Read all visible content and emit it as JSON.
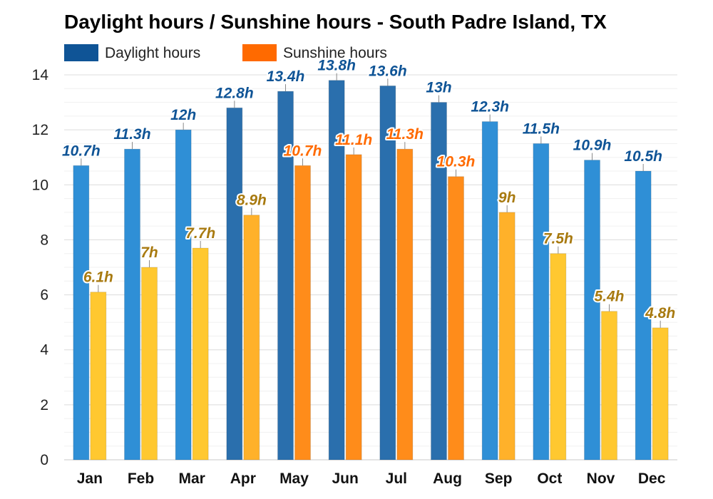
{
  "chart_data": {
    "type": "bar",
    "title": "Daylight hours / Sunshine hours - South Padre Island, TX",
    "categories": [
      "Jan",
      "Feb",
      "Mar",
      "Apr",
      "May",
      "Jun",
      "Jul",
      "Aug",
      "Sep",
      "Oct",
      "Nov",
      "Dec"
    ],
    "series": [
      {
        "name": "Daylight hours",
        "values": [
          10.7,
          11.3,
          12,
          12.8,
          13.4,
          13.8,
          13.6,
          13,
          12.3,
          11.5,
          10.9,
          10.5
        ],
        "labels": [
          "10.7h",
          "11.3h",
          "12h",
          "12.8h",
          "13.4h",
          "13.8h",
          "13.6h",
          "13h",
          "12.3h",
          "11.5h",
          "10.9h",
          "10.5h"
        ],
        "color": "#2f8fd6"
      },
      {
        "name": "Sunshine hours",
        "values": [
          6.1,
          7,
          7.7,
          8.9,
          10.7,
          11.1,
          11.3,
          10.3,
          9,
          7.5,
          5.4,
          4.8
        ],
        "labels": [
          "6.1h",
          "7h",
          "7.7h",
          "8.9h",
          "10.7h",
          "11.1h",
          "11.3h",
          "10.3h",
          "9h",
          "7.5h",
          "5.4h",
          "4.8h"
        ],
        "color": "#ff8c1a"
      }
    ],
    "ylim": [
      0,
      14
    ],
    "yticks": [
      0,
      2,
      4,
      6,
      8,
      10,
      12,
      14
    ],
    "grid": true,
    "legend": "top-left",
    "colors": {
      "daylight_light": "#2f8fd6",
      "daylight_dark": "#2a6fad",
      "sunshine_pale": "#ffc830",
      "sunshine_light": "#ffb12a",
      "sunshine_orange": "#ff8c1a",
      "label_blue": "#0f5496",
      "label_gold": "#a87a10",
      "label_orange": "#ff6a00",
      "grid": "#e2e2e2",
      "legend_daylight": "#0f5496",
      "legend_sunshine": "#ff6a00"
    }
  }
}
